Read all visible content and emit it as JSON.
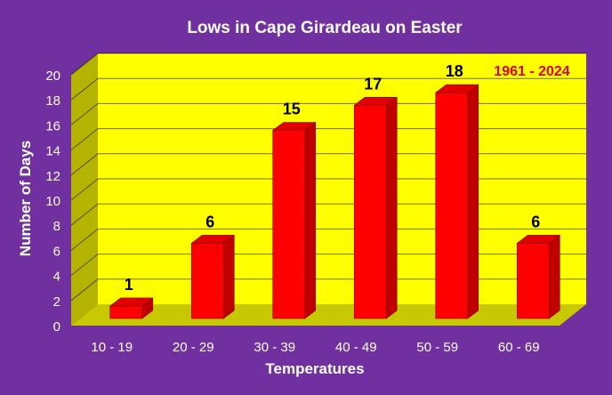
{
  "chart_data": {
    "type": "bar",
    "title": "Lows in Cape Girardeau on Easter",
    "annotation": "1961 - 2024",
    "xlabel": "Temperatures",
    "ylabel": "Number of Days",
    "categories": [
      "10 - 19",
      "20 - 29",
      "30 - 39",
      "40 - 49",
      "50 - 59",
      "60 - 69"
    ],
    "values": [
      1,
      6,
      15,
      17,
      18,
      6
    ],
    "data_labels": [
      "1",
      "6",
      "15",
      "17",
      "18",
      "6"
    ],
    "ylim": [
      0,
      20
    ],
    "yticks": [
      "0",
      "2",
      "4",
      "6",
      "8",
      "10",
      "12",
      "14",
      "16",
      "18",
      "20"
    ],
    "grid": true,
    "legend": "none",
    "three_d": true,
    "colors": {
      "background": "#7030a0",
      "plot_area": "#ffff00",
      "side_wall": "#b4b400",
      "floor": "#c8c800",
      "bar_front": "#ff0000",
      "bar_side": "#c00000",
      "bar_top": "#e00000",
      "gridline": "#000000",
      "annotation": "#e00000",
      "axis_text": "#ffffff",
      "data_label": "#000000"
    }
  }
}
